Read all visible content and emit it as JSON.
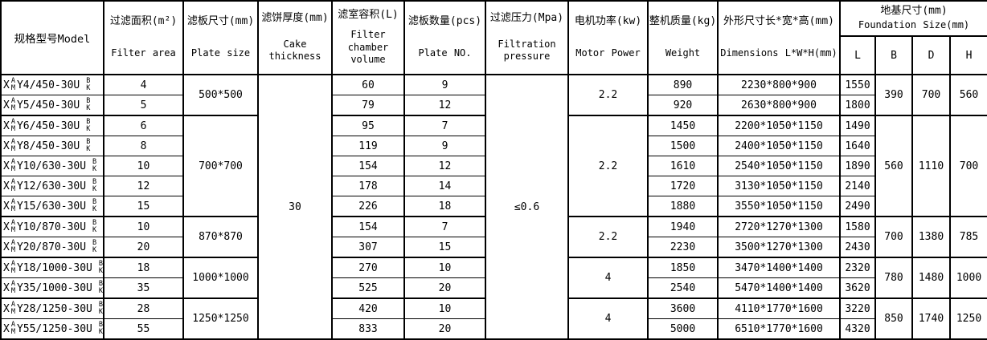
{
  "colors": {
    "border": "#000000",
    "background": "#ffffff",
    "text": "#000000"
  },
  "header": {
    "model": {
      "label": "规格型号Model"
    },
    "columns": [
      {
        "zh": "过滤面积(m²)",
        "en": "Filter area"
      },
      {
        "zh": "滤板尺寸(mm)",
        "en": "Plate size"
      },
      {
        "zh": "滤饼厚度(mm)",
        "en": "Cake thickness"
      },
      {
        "zh": "滤室容积(L)",
        "en": "Filter chamber volume"
      },
      {
        "zh": "滤板数量(pcs)",
        "en": "Plate NO."
      },
      {
        "zh": "过滤压力(Mpa)",
        "en": "Filtration pressure"
      },
      {
        "zh": "电机功率(kw)",
        "en": "Motor Power"
      },
      {
        "zh": "整机质量(kg)",
        "en": "Weight"
      },
      {
        "zh": "外形尺寸长*宽*高(mm)",
        "en": "Dimensions L*W*H(mm)"
      }
    ],
    "foundation": {
      "zh": "地基尺寸(mm)",
      "en": "Foundation Size(mm)",
      "sub": [
        "L",
        "B",
        "D",
        "H"
      ]
    }
  },
  "rows": [
    {
      "model_prefix": "X",
      "model_stack_top": "A",
      "model_stack_bottom": "M",
      "model_name": "Y4/450-30U",
      "model_suffix_top": "B",
      "model_suffix_bottom": "K",
      "filter_area": "4",
      "chamber_volume": "60",
      "plate_no": "9",
      "weight": "890",
      "dimensions": "2230*800*900",
      "foundation_l": "1550"
    },
    {
      "model_prefix": "X",
      "model_stack_top": "A",
      "model_stack_bottom": "M",
      "model_name": "Y5/450-30U",
      "model_suffix_top": "B",
      "model_suffix_bottom": "K",
      "filter_area": "5",
      "chamber_volume": "79",
      "plate_no": "12",
      "weight": "920",
      "dimensions": "2630*800*900",
      "foundation_l": "1800"
    },
    {
      "model_prefix": "X",
      "model_stack_top": "A",
      "model_stack_bottom": "M",
      "model_name": "Y6/450-30U",
      "model_suffix_top": "B",
      "model_suffix_bottom": "K",
      "filter_area": "6",
      "chamber_volume": "95",
      "plate_no": "7",
      "weight": "1450",
      "dimensions": "2200*1050*1150",
      "foundation_l": "1490"
    },
    {
      "model_prefix": "X",
      "model_stack_top": "A",
      "model_stack_bottom": "M",
      "model_name": "Y8/450-30U",
      "model_suffix_top": "B",
      "model_suffix_bottom": "K",
      "filter_area": "8",
      "chamber_volume": "119",
      "plate_no": "9",
      "weight": "1500",
      "dimensions": "2400*1050*1150",
      "foundation_l": "1640"
    },
    {
      "model_prefix": "X",
      "model_stack_top": "A",
      "model_stack_bottom": "M",
      "model_name": "Y10/630-30U",
      "model_suffix_top": "B",
      "model_suffix_bottom": "K",
      "filter_area": "10",
      "chamber_volume": "154",
      "plate_no": "12",
      "weight": "1610",
      "dimensions": "2540*1050*1150",
      "foundation_l": "1890"
    },
    {
      "model_prefix": "X",
      "model_stack_top": "A",
      "model_stack_bottom": "M",
      "model_name": "Y12/630-30U",
      "model_suffix_top": "B",
      "model_suffix_bottom": "K",
      "filter_area": "12",
      "chamber_volume": "178",
      "plate_no": "14",
      "weight": "1720",
      "dimensions": "3130*1050*1150",
      "foundation_l": "2140"
    },
    {
      "model_prefix": "X",
      "model_stack_top": "A",
      "model_stack_bottom": "M",
      "model_name": "Y15/630-30U",
      "model_suffix_top": "B",
      "model_suffix_bottom": "K",
      "filter_area": "15",
      "chamber_volume": "226",
      "plate_no": "18",
      "weight": "1880",
      "dimensions": "3550*1050*1150",
      "foundation_l": "2490"
    },
    {
      "model_prefix": "X",
      "model_stack_top": "A",
      "model_stack_bottom": "M",
      "model_name": "Y10/870-30U",
      "model_suffix_top": "B",
      "model_suffix_bottom": "K",
      "filter_area": "10",
      "chamber_volume": "154",
      "plate_no": "7",
      "weight": "1940",
      "dimensions": "2720*1270*1300",
      "foundation_l": "1580"
    },
    {
      "model_prefix": "X",
      "model_stack_top": "A",
      "model_stack_bottom": "M",
      "model_name": "Y20/870-30U",
      "model_suffix_top": "B",
      "model_suffix_bottom": "K",
      "filter_area": "20",
      "chamber_volume": "307",
      "plate_no": "15",
      "weight": "2230",
      "dimensions": "3500*1270*1300",
      "foundation_l": "2430"
    },
    {
      "model_prefix": "X",
      "model_stack_top": "A",
      "model_stack_bottom": "M",
      "model_name": "Y18/1000-30U",
      "model_suffix_top": "B",
      "model_suffix_bottom": "K",
      "filter_area": "18",
      "chamber_volume": "270",
      "plate_no": "10",
      "weight": "1850",
      "dimensions": "3470*1400*1400",
      "foundation_l": "2320"
    },
    {
      "model_prefix": "X",
      "model_stack_top": "A",
      "model_stack_bottom": "M",
      "model_name": "Y35/1000-30U",
      "model_suffix_top": "B",
      "model_suffix_bottom": "K",
      "filter_area": "35",
      "chamber_volume": "525",
      "plate_no": "20",
      "weight": "2540",
      "dimensions": "5470*1400*1400",
      "foundation_l": "3620"
    },
    {
      "model_prefix": "X",
      "model_stack_top": "A",
      "model_stack_bottom": "M",
      "model_name": "Y28/1250-30U",
      "model_suffix_top": "B",
      "model_suffix_bottom": "K",
      "filter_area": "28",
      "chamber_volume": "420",
      "plate_no": "10",
      "weight": "3600",
      "dimensions": "4110*1770*1600",
      "foundation_l": "3220"
    },
    {
      "model_prefix": "X",
      "model_stack_top": "A",
      "model_stack_bottom": "M",
      "model_name": "Y55/1250-30U",
      "model_suffix_top": "B",
      "model_suffix_bottom": "K",
      "filter_area": "55",
      "chamber_volume": "833",
      "plate_no": "20",
      "weight": "5000",
      "dimensions": "6510*1770*1600",
      "foundation_l": "4320"
    }
  ],
  "groups": {
    "cake_thickness": "30",
    "filtration_pressure": "≤0.6",
    "plate_size": [
      {
        "rows": 2,
        "value": "500*500"
      },
      {
        "rows": 5,
        "value": "700*700"
      },
      {
        "rows": 2,
        "value": "870*870"
      },
      {
        "rows": 2,
        "value": "1000*1000"
      },
      {
        "rows": 2,
        "value": "1250*1250"
      }
    ],
    "motor_power": [
      {
        "rows": 2,
        "value": "2.2"
      },
      {
        "rows": 5,
        "value": "2.2"
      },
      {
        "rows": 2,
        "value": "2.2"
      },
      {
        "rows": 2,
        "value": "4"
      },
      {
        "rows": 2,
        "value": "4"
      }
    ],
    "foundation": [
      {
        "rows": 2,
        "B": "390",
        "D": "700",
        "H": "560"
      },
      {
        "rows": 5,
        "B": "560",
        "D": "1110",
        "H": "700"
      },
      {
        "rows": 2,
        "B": "700",
        "D": "1380",
        "H": "785"
      },
      {
        "rows": 2,
        "B": "780",
        "D": "1480",
        "H": "1000"
      },
      {
        "rows": 2,
        "B": "850",
        "D": "1740",
        "H": "1250"
      }
    ]
  }
}
